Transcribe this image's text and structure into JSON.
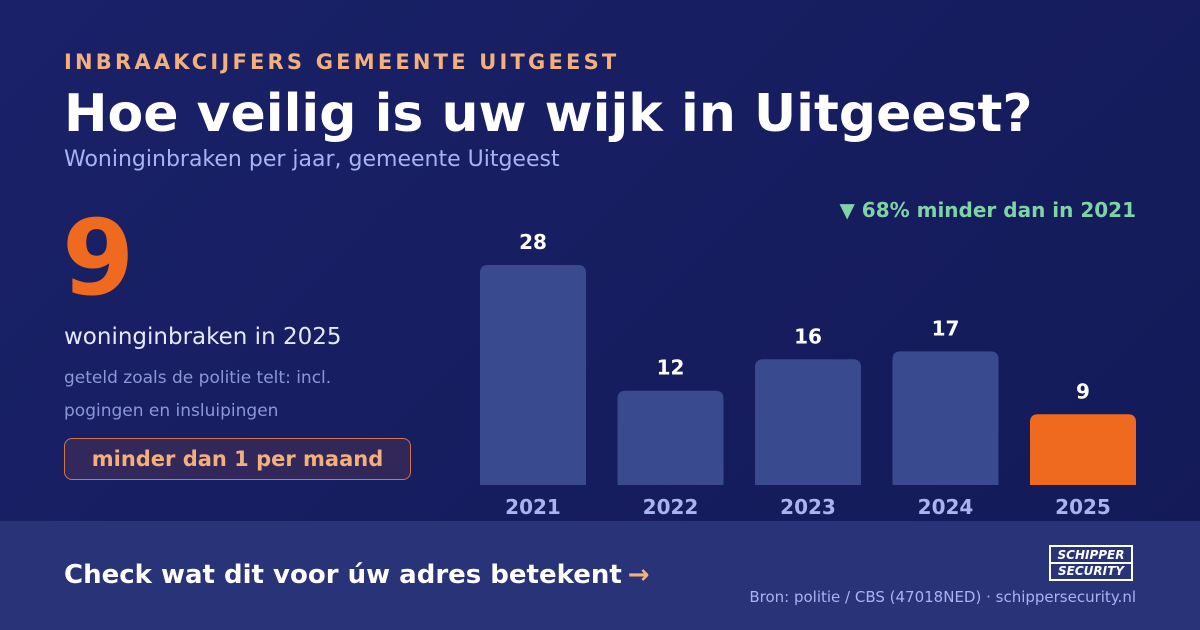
{
  "header": {
    "eyebrow": "INBRAAKCIJFERS GEMEENTE UITGEEST",
    "title": "Hoe veilig is uw wijk in Uitgeest?",
    "subtitle": "Woninginbraken per jaar, gemeente Uitgeest"
  },
  "highlight": {
    "number": "9",
    "caption": "woninginbraken in 2025",
    "note": "geteld zoals de politie telt: incl. pogingen en insluipingen",
    "badge": "minder dan 1 per maand"
  },
  "change_note": "▼ 68% minder dan in 2021",
  "chart_data": {
    "type": "bar",
    "categories": [
      "2021",
      "2022",
      "2023",
      "2024",
      "2025"
    ],
    "values": [
      28,
      12,
      16,
      17,
      9
    ],
    "highlight_index": 4,
    "ylim": [
      0,
      28
    ],
    "grid": false,
    "title": "",
    "xlabel": "",
    "ylabel": ""
  },
  "footer": {
    "cta": "Check wat dit voor úw adres betekent",
    "cta_arrow": "→",
    "source": "Bron: politie / CBS (47018NED) · schippersecurity.nl",
    "logo_line1": "SCHIPPER",
    "logo_line2": "SECURITY"
  },
  "colors": {
    "background": "#161d5f",
    "bar": "#3a4a8f",
    "bar_highlight": "#ef6a1e",
    "accent": "#f3b07c",
    "positive": "#7fd3a6",
    "footer": "#283378"
  }
}
